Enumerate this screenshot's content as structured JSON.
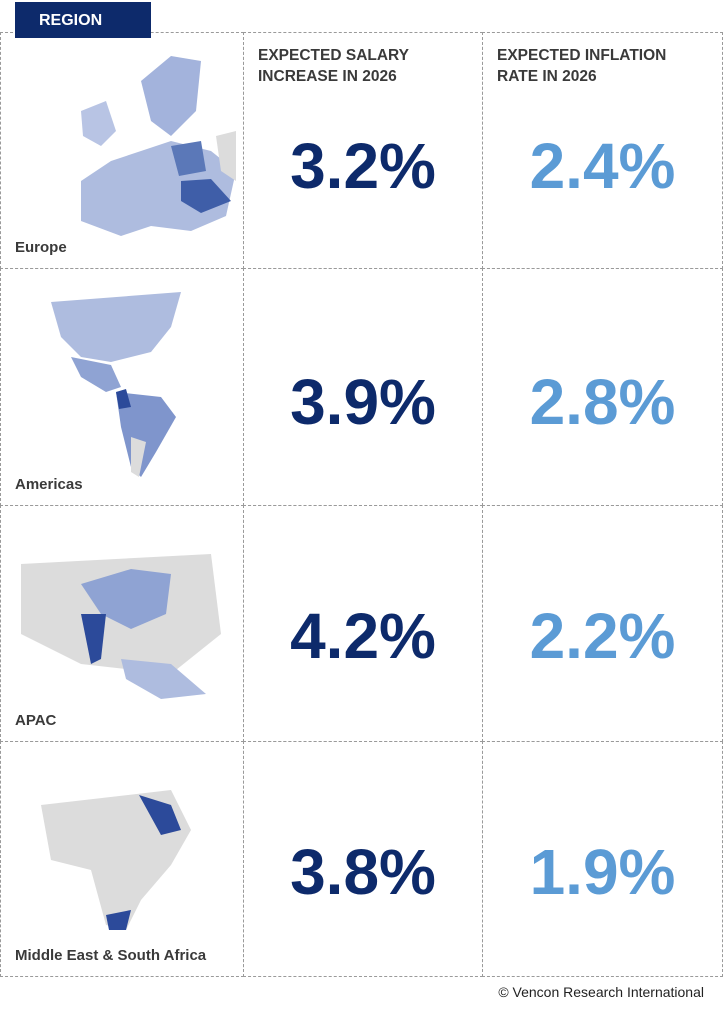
{
  "header": {
    "tab": "REGION",
    "columns": [
      "EXPECTED SALARY INCREASE IN 2026",
      "EXPECTED INFLATION RATE IN 2026"
    ]
  },
  "rows": [
    {
      "region": "Europe",
      "salary": "3.2%",
      "inflation": "2.4%"
    },
    {
      "region": "Americas",
      "salary": "3.9%",
      "inflation": "2.8%"
    },
    {
      "region": "APAC",
      "salary": "4.2%",
      "inflation": "2.2%"
    },
    {
      "region": "Middle East & South Africa",
      "salary": "3.8%",
      "inflation": "1.9%"
    }
  ],
  "footer": "© Vencon Research International"
}
